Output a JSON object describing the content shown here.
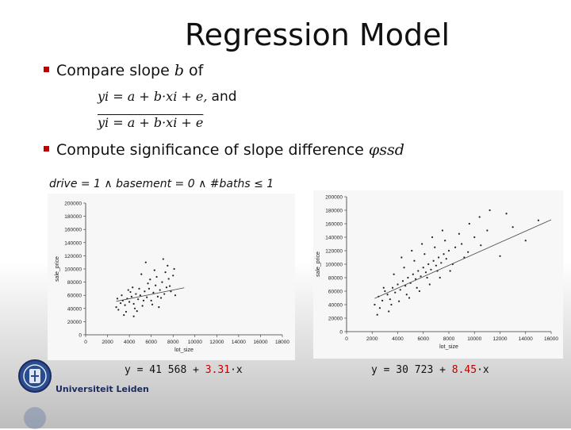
{
  "slide_title": "Regression Model",
  "bullets": {
    "compare_prefix": "Compare slope",
    "compare_var": "b",
    "compare_suffix": "of",
    "eq1_math": "yi = a + b·xi + e,",
    "eq1_and": "and",
    "eq2_math": "yi = a + b·xi + e",
    "significance_text": "Compute significance of slope difference",
    "significance_symbol": "φssd"
  },
  "condition": "drive = 1 ∧ basement = 0 ∧ #baths ≤ 1",
  "institution": "Universiteit Leiden",
  "colors": {
    "accent": "#c00000",
    "brand": "#1b2a5e"
  },
  "chart_data": [
    {
      "type": "scatter",
      "xlabel": "lot_size",
      "ylabel": "sale_price",
      "xlim": [
        0,
        18000
      ],
      "ylim": [
        0,
        200000
      ],
      "xticks": [
        "0",
        "2000",
        "4000",
        "6000",
        "8000",
        "10000",
        "12000",
        "14000",
        "16000",
        "18000"
      ],
      "yticks": [
        "0",
        "20000",
        "40000",
        "60000",
        "80000",
        "100000",
        "120000",
        "140000",
        "160000",
        "180000",
        "200000"
      ],
      "regression": {
        "intercept": 41568,
        "slope": 3.31
      },
      "formula": {
        "prefix": "y = 41 568 + ",
        "slope": "3.31",
        "suffix": "·x"
      },
      "points": [
        [
          2800,
          42000
        ],
        [
          3200,
          48000
        ],
        [
          3400,
          52000
        ],
        [
          3600,
          45000
        ],
        [
          3800,
          55000
        ],
        [
          4000,
          50000
        ],
        [
          4200,
          58000
        ],
        [
          4400,
          47000
        ],
        [
          4600,
          62000
        ],
        [
          4800,
          54000
        ],
        [
          5000,
          60000
        ],
        [
          5200,
          44000
        ],
        [
          5400,
          66000
        ],
        [
          5600,
          57000
        ],
        [
          5800,
          70000
        ],
        [
          6000,
          52000
        ],
        [
          6200,
          64000
        ],
        [
          6400,
          75000
        ],
        [
          6600,
          58000
        ],
        [
          6800,
          68000
        ],
        [
          7000,
          80000
        ],
        [
          7200,
          62000
        ],
        [
          7400,
          72000
        ],
        [
          7600,
          85000
        ],
        [
          7800,
          66000
        ],
        [
          8000,
          90000
        ],
        [
          8200,
          60000
        ],
        [
          3000,
          38000
        ],
        [
          3300,
          60000
        ],
        [
          3700,
          35000
        ],
        [
          4100,
          65000
        ],
        [
          4500,
          40000
        ],
        [
          4900,
          70000
        ],
        [
          5300,
          52000
        ],
        [
          5700,
          78000
        ],
        [
          6100,
          46000
        ],
        [
          6500,
          88000
        ],
        [
          6900,
          56000
        ],
        [
          7300,
          95000
        ],
        [
          7700,
          74000
        ],
        [
          8100,
          100000
        ],
        [
          4300,
          72000
        ],
        [
          3500,
          30000
        ],
        [
          5900,
          84000
        ],
        [
          6700,
          42000
        ],
        [
          7500,
          105000
        ],
        [
          2900,
          55000
        ],
        [
          4700,
          36000
        ],
        [
          5100,
          92000
        ],
        [
          6300,
          98000
        ],
        [
          3900,
          68000
        ],
        [
          4400,
          28000
        ],
        [
          5500,
          110000
        ],
        [
          7100,
          115000
        ]
      ]
    },
    {
      "type": "scatter",
      "xlabel": "lot_size",
      "ylabel": "sale_price",
      "xlim": [
        0,
        16000
      ],
      "ylim": [
        0,
        200000
      ],
      "xticks": [
        "0",
        "2000",
        "4000",
        "6000",
        "8000",
        "10000",
        "12000",
        "14000",
        "16000"
      ],
      "yticks": [
        "0",
        "20000",
        "40000",
        "60000",
        "80000",
        "100000",
        "120000",
        "140000",
        "160000",
        "180000",
        "200000"
      ],
      "regression": {
        "intercept": 30723,
        "slope": 8.45
      },
      "formula": {
        "prefix": "y = 30 723 + ",
        "slope": "8.45",
        "suffix": "·x"
      },
      "points": [
        [
          2200,
          40000
        ],
        [
          2500,
          52000
        ],
        [
          2800,
          46000
        ],
        [
          3000,
          60000
        ],
        [
          3200,
          55000
        ],
        [
          3400,
          48000
        ],
        [
          3600,
          65000
        ],
        [
          3800,
          58000
        ],
        [
          4000,
          70000
        ],
        [
          4200,
          62000
        ],
        [
          4400,
          75000
        ],
        [
          4600,
          68000
        ],
        [
          4800,
          80000
        ],
        [
          5000,
          72000
        ],
        [
          5200,
          85000
        ],
        [
          5400,
          78000
        ],
        [
          5600,
          90000
        ],
        [
          5800,
          82000
        ],
        [
          6000,
          95000
        ],
        [
          6200,
          88000
        ],
        [
          6400,
          100000
        ],
        [
          6600,
          92000
        ],
        [
          6800,
          105000
        ],
        [
          7000,
          98000
        ],
        [
          7200,
          110000
        ],
        [
          7400,
          102000
        ],
        [
          7600,
          115000
        ],
        [
          7800,
          108000
        ],
        [
          8000,
          120000
        ],
        [
          8500,
          125000
        ],
        [
          9000,
          130000
        ],
        [
          9500,
          118000
        ],
        [
          10000,
          140000
        ],
        [
          10500,
          128000
        ],
        [
          11000,
          150000
        ],
        [
          12000,
          112000
        ],
        [
          13000,
          155000
        ],
        [
          14000,
          135000
        ],
        [
          15000,
          165000
        ],
        [
          2600,
          35000
        ],
        [
          3300,
          30000
        ],
        [
          4100,
          45000
        ],
        [
          4900,
          50000
        ],
        [
          5700,
          60000
        ],
        [
          6500,
          70000
        ],
        [
          7300,
          80000
        ],
        [
          8100,
          90000
        ],
        [
          3700,
          85000
        ],
        [
          4500,
          95000
        ],
        [
          5300,
          105000
        ],
        [
          6100,
          115000
        ],
        [
          6900,
          125000
        ],
        [
          7700,
          135000
        ],
        [
          8800,
          145000
        ],
        [
          9600,
          160000
        ],
        [
          10400,
          170000
        ],
        [
          11200,
          180000
        ],
        [
          12500,
          175000
        ],
        [
          2900,
          65000
        ],
        [
          4300,
          110000
        ],
        [
          5100,
          120000
        ],
        [
          5900,
          130000
        ],
        [
          6700,
          140000
        ],
        [
          7500,
          150000
        ],
        [
          8300,
          100000
        ],
        [
          9200,
          110000
        ],
        [
          2400,
          25000
        ],
        [
          3500,
          40000
        ],
        [
          4700,
          55000
        ],
        [
          5500,
          65000
        ],
        [
          6300,
          80000
        ],
        [
          7100,
          90000
        ]
      ]
    }
  ]
}
